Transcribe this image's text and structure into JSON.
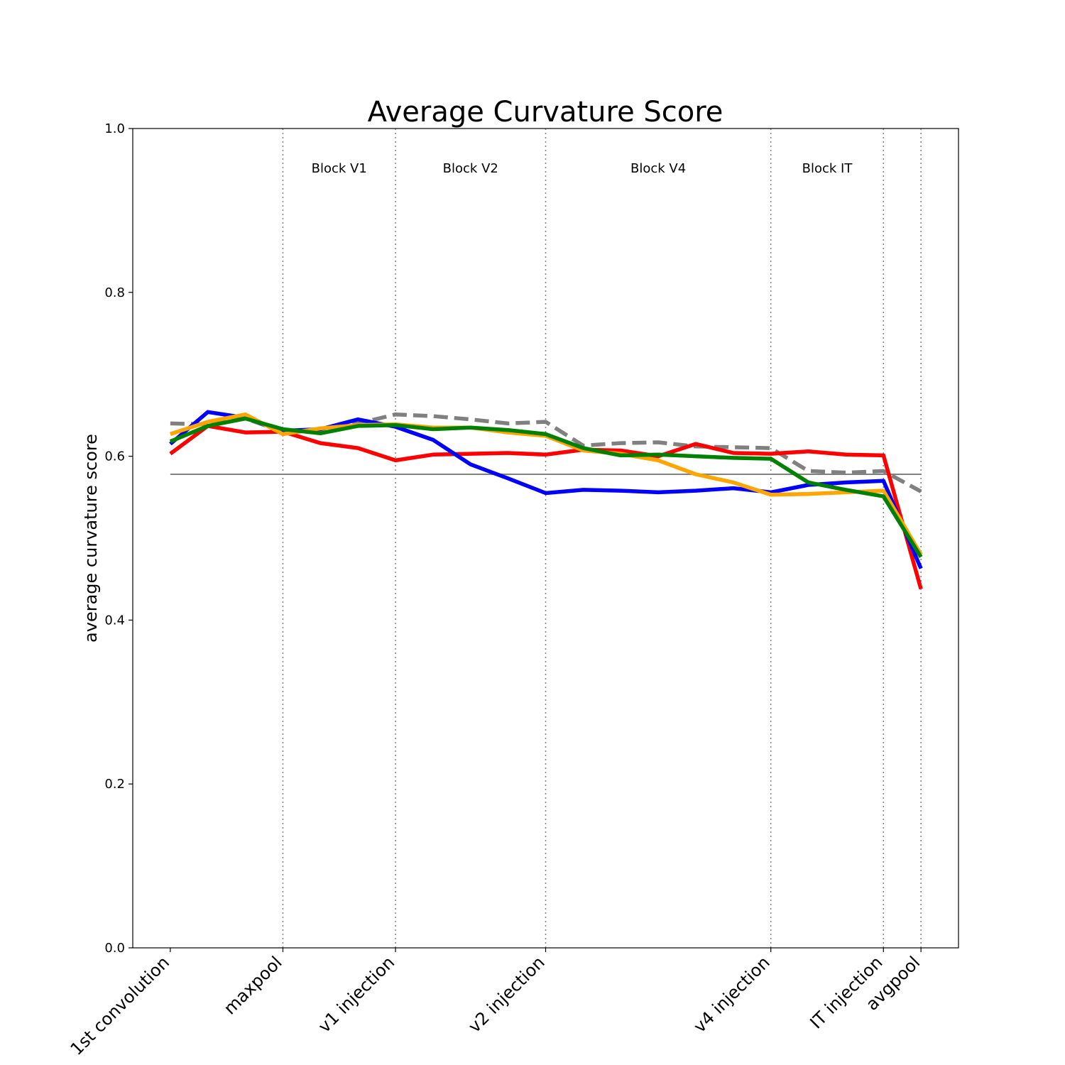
{
  "chart_data": {
    "type": "line",
    "title": "Average Curvature Score",
    "xlabel": "",
    "ylabel": "average curvature score",
    "ylim": [
      0,
      1
    ],
    "yticks": [
      "0.0",
      "0.2",
      "0.4",
      "0.6",
      "0.8",
      "1.0"
    ],
    "xlim": [
      -1,
      21
    ],
    "x": [
      0,
      1,
      2,
      3,
      4,
      5,
      6,
      7,
      8,
      9,
      10,
      11,
      12,
      13,
      14,
      15,
      16,
      17,
      18,
      19,
      20
    ],
    "xticks": [
      {
        "pos": 0,
        "label": "1st convolution"
      },
      {
        "pos": 3,
        "label": "maxpool"
      },
      {
        "pos": 6,
        "label": "v1 injection"
      },
      {
        "pos": 10,
        "label": "v2 injection"
      },
      {
        "pos": 16,
        "label": "v4 injection"
      },
      {
        "pos": 19,
        "label": "IT injection"
      },
      {
        "pos": 20,
        "label": "avgpool"
      }
    ],
    "block_boundaries": [
      3,
      6,
      10,
      16,
      19,
      20
    ],
    "block_labels": [
      {
        "label": "Block V1",
        "pos": 4.5
      },
      {
        "label": "Block V2",
        "pos": 8
      },
      {
        "label": "Block V4",
        "pos": 13
      },
      {
        "label": "Block IT",
        "pos": 17.5
      }
    ],
    "reference_line": {
      "y": 0.578,
      "color": "#808080"
    },
    "grid": false,
    "legend": false,
    "series": [
      {
        "color": "#808080",
        "style": "dashed",
        "values": [
          0.64,
          0.639,
          0.646,
          0.63,
          0.633,
          0.64,
          0.651,
          0.649,
          0.645,
          0.64,
          0.642,
          0.613,
          0.616,
          0.617,
          0.612,
          0.611,
          0.61,
          0.582,
          0.58,
          0.582,
          0.557
        ]
      },
      {
        "color": "#ff0000",
        "style": "solid",
        "values": [
          0.603,
          0.637,
          0.629,
          0.63,
          0.616,
          0.61,
          0.595,
          0.602,
          0.603,
          0.604,
          0.602,
          0.608,
          0.607,
          0.6,
          0.615,
          0.604,
          0.603,
          0.606,
          0.602,
          0.601,
          0.438
        ]
      },
      {
        "color": "#0000ff",
        "style": "solid",
        "values": [
          0.615,
          0.654,
          0.647,
          0.631,
          0.633,
          0.645,
          0.636,
          0.62,
          0.59,
          0.573,
          0.555,
          0.559,
          0.558,
          0.556,
          0.558,
          0.561,
          0.556,
          0.565,
          0.568,
          0.57,
          0.463
        ]
      },
      {
        "color": "#ffa500",
        "style": "solid",
        "values": [
          0.627,
          0.642,
          0.651,
          0.627,
          0.634,
          0.638,
          0.639,
          0.635,
          0.635,
          0.629,
          0.625,
          0.607,
          0.603,
          0.595,
          0.578,
          0.568,
          0.553,
          0.554,
          0.556,
          0.558,
          0.48
        ]
      },
      {
        "color": "#008000",
        "style": "solid",
        "values": [
          0.618,
          0.637,
          0.646,
          0.633,
          0.628,
          0.637,
          0.638,
          0.633,
          0.635,
          0.632,
          0.627,
          0.61,
          0.601,
          0.602,
          0.6,
          0.598,
          0.597,
          0.568,
          0.559,
          0.551,
          0.477
        ]
      }
    ]
  }
}
